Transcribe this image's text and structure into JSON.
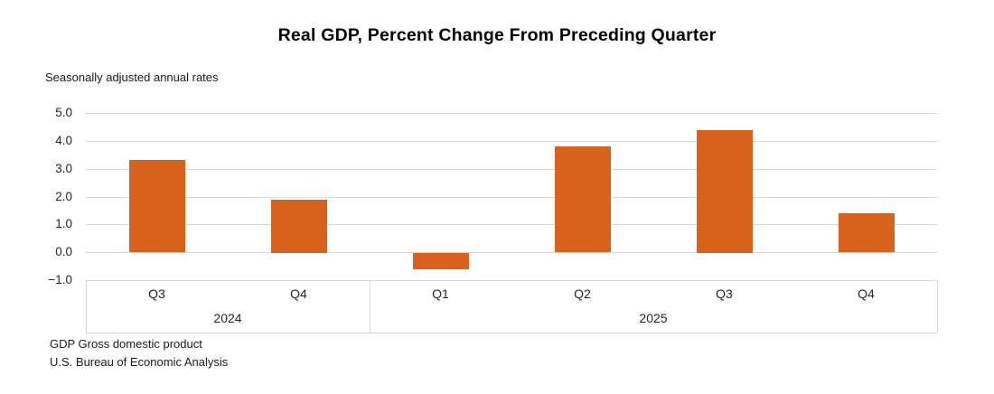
{
  "header": {
    "title": "Real GDP, Percent Change From Preceding Quarter",
    "subtitle": "Seasonally adjusted annual rates"
  },
  "footer": {
    "note": "GDP Gross domestic product",
    "source": "U.S. Bureau of Economic Analysis"
  },
  "colors": {
    "bar": "#d8621c",
    "gridline": "#d9d9d9",
    "zero_line": "#d9d9d9",
    "band_border": "#d3d3d3",
    "text": "#262626"
  },
  "chart_data": {
    "type": "bar",
    "title": "Real GDP, Percent Change From Preceding Quarter",
    "subtitle": "Seasonally adjusted annual rates",
    "categories": [
      "Q3",
      "Q4",
      "Q1",
      "Q2",
      "Q3",
      "Q4"
    ],
    "year_groups": [
      {
        "label": "2024",
        "span": 2
      },
      {
        "label": "2025",
        "span": 4
      }
    ],
    "values": [
      3.3,
      1.9,
      -0.6,
      3.8,
      4.4,
      1.4
    ],
    "series_name": "Real GDP percent change",
    "xlabel": "",
    "ylabel": "",
    "ylim": [
      -1.0,
      5.0
    ],
    "ytick_step": 1.0,
    "ytick_labels": [
      "5.0",
      "4.0",
      "3.0",
      "2.0",
      "1.0",
      "0.0",
      "−1.0"
    ],
    "grid": true,
    "legend": "none",
    "bar_color": "#d8621c"
  }
}
